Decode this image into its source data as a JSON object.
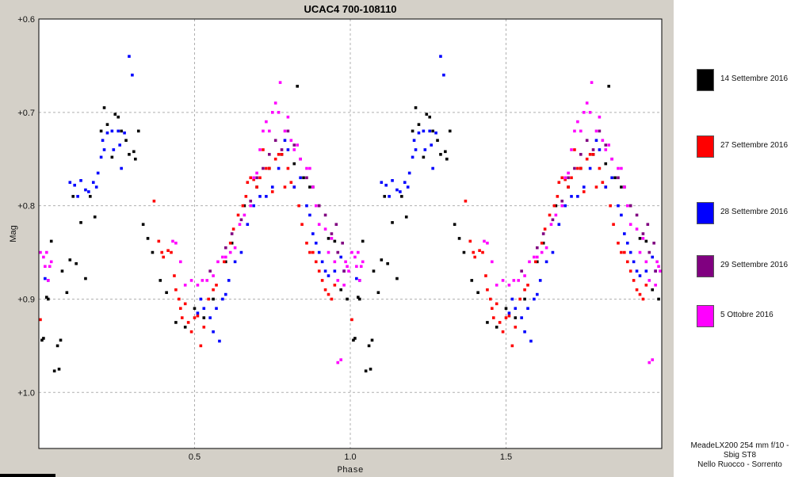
{
  "chart_data": {
    "type": "scatter",
    "title": "UCAC4 700-108110",
    "xlabel": "Phase",
    "ylabel": "Mag",
    "xlim": [
      0.0,
      2.0
    ],
    "ylim": [
      0.6,
      1.06
    ],
    "y_inverted": true,
    "x_ticks": [
      "0.5",
      "1.0",
      "1.5"
    ],
    "x_tick_values": [
      0.5,
      1.0,
      1.5
    ],
    "y_ticks": [
      "+0.6",
      "+0.7",
      "+0.8",
      "+0.9",
      "+1.0"
    ],
    "y_tick_values": [
      0.6,
      0.7,
      0.8,
      0.9,
      1.0
    ],
    "grid": true,
    "legend_position": "right",
    "phase_repeat": 1.0,
    "series": [
      {
        "name": "14 Settembre 2016",
        "color": "#000000",
        "points": [
          [
            0.01,
            0.944
          ],
          [
            0.015,
            0.942
          ],
          [
            0.025,
            0.898
          ],
          [
            0.03,
            0.9
          ],
          [
            0.04,
            0.838
          ],
          [
            0.05,
            0.977
          ],
          [
            0.06,
            0.95
          ],
          [
            0.065,
            0.975
          ],
          [
            0.07,
            0.944
          ],
          [
            0.075,
            0.87
          ],
          [
            0.09,
            0.893
          ],
          [
            0.1,
            0.858
          ],
          [
            0.11,
            0.79
          ],
          [
            0.12,
            0.862
          ],
          [
            0.135,
            0.818
          ],
          [
            0.15,
            0.878
          ],
          [
            0.165,
            0.79
          ],
          [
            0.18,
            0.812
          ],
          [
            0.2,
            0.72
          ],
          [
            0.21,
            0.695
          ],
          [
            0.22,
            0.713
          ],
          [
            0.235,
            0.748
          ],
          [
            0.245,
            0.702
          ],
          [
            0.255,
            0.705
          ],
          [
            0.265,
            0.72
          ],
          [
            0.28,
            0.73
          ],
          [
            0.29,
            0.745
          ],
          [
            0.305,
            0.742
          ],
          [
            0.31,
            0.75
          ],
          [
            0.32,
            0.72
          ],
          [
            0.335,
            0.82
          ],
          [
            0.35,
            0.835
          ],
          [
            0.365,
            0.85
          ],
          [
            0.39,
            0.88
          ],
          [
            0.41,
            0.893
          ],
          [
            0.44,
            0.925
          ],
          [
            0.47,
            0.93
          ],
          [
            0.5,
            0.91
          ],
          [
            0.53,
            0.92
          ],
          [
            0.56,
            0.9
          ],
          [
            0.6,
            0.86
          ],
          [
            0.62,
            0.84
          ],
          [
            0.66,
            0.8
          ],
          [
            0.7,
            0.78
          ],
          [
            0.74,
            0.76
          ],
          [
            0.78,
            0.745
          ],
          [
            0.82,
            0.755
          ],
          [
            0.83,
            0.672
          ],
          [
            0.85,
            0.77
          ],
          [
            0.87,
            0.78
          ],
          [
            0.88,
            0.78
          ],
          [
            0.9,
            0.8
          ],
          [
            0.93,
            0.835
          ],
          [
            0.95,
            0.838
          ],
          [
            0.97,
            0.89
          ],
          [
            0.99,
            0.9
          ]
        ]
      },
      {
        "name": "27 Settembre 2016",
        "color": "#ff0000",
        "points": [
          [
            0.005,
            0.922
          ],
          [
            0.37,
            0.795
          ],
          [
            0.385,
            0.838
          ],
          [
            0.395,
            0.85
          ],
          [
            0.4,
            0.855
          ],
          [
            0.415,
            0.848
          ],
          [
            0.425,
            0.85
          ],
          [
            0.435,
            0.875
          ],
          [
            0.44,
            0.89
          ],
          [
            0.45,
            0.9
          ],
          [
            0.455,
            0.91
          ],
          [
            0.46,
            0.92
          ],
          [
            0.47,
            0.905
          ],
          [
            0.48,
            0.925
          ],
          [
            0.49,
            0.935
          ],
          [
            0.5,
            0.92
          ],
          [
            0.51,
            0.918
          ],
          [
            0.52,
            0.95
          ],
          [
            0.53,
            0.93
          ],
          [
            0.545,
            0.9
          ],
          [
            0.56,
            0.89
          ],
          [
            0.57,
            0.885
          ],
          [
            0.595,
            0.86
          ],
          [
            0.615,
            0.84
          ],
          [
            0.625,
            0.825
          ],
          [
            0.64,
            0.81
          ],
          [
            0.655,
            0.8
          ],
          [
            0.665,
            0.79
          ],
          [
            0.67,
            0.775
          ],
          [
            0.68,
            0.77
          ],
          [
            0.69,
            0.772
          ],
          [
            0.7,
            0.78
          ],
          [
            0.71,
            0.77
          ],
          [
            0.72,
            0.74
          ],
          [
            0.73,
            0.76
          ],
          [
            0.74,
            0.76
          ],
          [
            0.75,
            0.785
          ],
          [
            0.76,
            0.75
          ],
          [
            0.77,
            0.745
          ],
          [
            0.78,
            0.745
          ],
          [
            0.79,
            0.78
          ],
          [
            0.8,
            0.76
          ],
          [
            0.81,
            0.775
          ],
          [
            0.82,
            0.78
          ],
          [
            0.835,
            0.8
          ],
          [
            0.845,
            0.82
          ],
          [
            0.86,
            0.84
          ],
          [
            0.87,
            0.85
          ],
          [
            0.88,
            0.85
          ],
          [
            0.89,
            0.86
          ],
          [
            0.9,
            0.87
          ],
          [
            0.91,
            0.88
          ],
          [
            0.92,
            0.89
          ],
          [
            0.93,
            0.895
          ],
          [
            0.94,
            0.9
          ],
          [
            0.95,
            0.885
          ]
        ]
      },
      {
        "name": "28 Settembre 2016",
        "color": "#0000ff",
        "points": [
          [
            0.02,
            0.878
          ],
          [
            0.03,
            0.88
          ],
          [
            0.1,
            0.775
          ],
          [
            0.115,
            0.778
          ],
          [
            0.125,
            0.79
          ],
          [
            0.135,
            0.773
          ],
          [
            0.15,
            0.783
          ],
          [
            0.16,
            0.785
          ],
          [
            0.175,
            0.775
          ],
          [
            0.185,
            0.78
          ],
          [
            0.19,
            0.765
          ],
          [
            0.2,
            0.748
          ],
          [
            0.205,
            0.73
          ],
          [
            0.21,
            0.74
          ],
          [
            0.22,
            0.722
          ],
          [
            0.235,
            0.72
          ],
          [
            0.24,
            0.74
          ],
          [
            0.255,
            0.72
          ],
          [
            0.26,
            0.735
          ],
          [
            0.265,
            0.76
          ],
          [
            0.275,
            0.722
          ],
          [
            0.29,
            0.64
          ],
          [
            0.3,
            0.66
          ],
          [
            0.51,
            0.915
          ],
          [
            0.52,
            0.9
          ],
          [
            0.53,
            0.91
          ],
          [
            0.55,
            0.92
          ],
          [
            0.56,
            0.935
          ],
          [
            0.57,
            0.91
          ],
          [
            0.58,
            0.945
          ],
          [
            0.59,
            0.9
          ],
          [
            0.6,
            0.895
          ],
          [
            0.61,
            0.88
          ],
          [
            0.63,
            0.86
          ],
          [
            0.65,
            0.85
          ],
          [
            0.67,
            0.82
          ],
          [
            0.69,
            0.8
          ],
          [
            0.71,
            0.79
          ],
          [
            0.73,
            0.79
          ],
          [
            0.75,
            0.78
          ],
          [
            0.77,
            0.76
          ],
          [
            0.79,
            0.73
          ],
          [
            0.8,
            0.74
          ],
          [
            0.82,
            0.78
          ],
          [
            0.84,
            0.77
          ],
          [
            0.86,
            0.8
          ],
          [
            0.87,
            0.81
          ],
          [
            0.88,
            0.83
          ],
          [
            0.89,
            0.84
          ],
          [
            0.9,
            0.85
          ],
          [
            0.91,
            0.86
          ],
          [
            0.92,
            0.87
          ],
          [
            0.93,
            0.875
          ],
          [
            0.95,
            0.87
          ],
          [
            0.97,
            0.855
          ],
          [
            0.98,
            0.87
          ]
        ]
      },
      {
        "name": "29 Settembre 2016",
        "color": "#800080",
        "points": [
          [
            0.55,
            0.87
          ],
          [
            0.6,
            0.845
          ],
          [
            0.62,
            0.83
          ],
          [
            0.65,
            0.815
          ],
          [
            0.68,
            0.795
          ],
          [
            0.7,
            0.77
          ],
          [
            0.72,
            0.76
          ],
          [
            0.74,
            0.745
          ],
          [
            0.76,
            0.73
          ],
          [
            0.78,
            0.74
          ],
          [
            0.8,
            0.72
          ],
          [
            0.82,
            0.735
          ],
          [
            0.84,
            0.75
          ],
          [
            0.86,
            0.77
          ],
          [
            0.88,
            0.78
          ],
          [
            0.9,
            0.8
          ],
          [
            0.92,
            0.81
          ],
          [
            0.94,
            0.83
          ],
          [
            0.96,
            0.85
          ],
          [
            0.98,
            0.87
          ],
          [
            0.975,
            0.84
          ],
          [
            0.955,
            0.82
          ]
        ]
      },
      {
        "name": "5 Ottobre 2016",
        "color": "#ff00ff",
        "points": [
          [
            0.005,
            0.85
          ],
          [
            0.015,
            0.855
          ],
          [
            0.02,
            0.865
          ],
          [
            0.025,
            0.85
          ],
          [
            0.03,
            0.88
          ],
          [
            0.035,
            0.865
          ],
          [
            0.04,
            0.86
          ],
          [
            0.43,
            0.838
          ],
          [
            0.44,
            0.84
          ],
          [
            0.455,
            0.86
          ],
          [
            0.47,
            0.885
          ],
          [
            0.49,
            0.88
          ],
          [
            0.51,
            0.885
          ],
          [
            0.525,
            0.88
          ],
          [
            0.54,
            0.88
          ],
          [
            0.56,
            0.875
          ],
          [
            0.575,
            0.86
          ],
          [
            0.59,
            0.855
          ],
          [
            0.6,
            0.855
          ],
          [
            0.615,
            0.85
          ],
          [
            0.63,
            0.845
          ],
          [
            0.645,
            0.82
          ],
          [
            0.66,
            0.81
          ],
          [
            0.68,
            0.8
          ],
          [
            0.69,
            0.77
          ],
          [
            0.7,
            0.765
          ],
          [
            0.71,
            0.74
          ],
          [
            0.72,
            0.72
          ],
          [
            0.73,
            0.71
          ],
          [
            0.74,
            0.72
          ],
          [
            0.75,
            0.7
          ],
          [
            0.76,
            0.69
          ],
          [
            0.77,
            0.7
          ],
          [
            0.775,
            0.668
          ],
          [
            0.79,
            0.72
          ],
          [
            0.8,
            0.705
          ],
          [
            0.81,
            0.73
          ],
          [
            0.82,
            0.74
          ],
          [
            0.83,
            0.735
          ],
          [
            0.84,
            0.75
          ],
          [
            0.86,
            0.76
          ],
          [
            0.87,
            0.76
          ],
          [
            0.88,
            0.78
          ],
          [
            0.89,
            0.8
          ],
          [
            0.9,
            0.82
          ],
          [
            0.92,
            0.825
          ],
          [
            0.94,
            0.835
          ],
          [
            0.95,
            0.86
          ],
          [
            0.96,
            0.88
          ],
          [
            0.98,
            0.885
          ],
          [
            0.985,
            0.86
          ],
          [
            0.99,
            0.865
          ],
          [
            0.995,
            0.87
          ],
          [
            0.97,
            0.965
          ],
          [
            0.96,
            0.968
          ],
          [
            0.93,
            0.85
          ]
        ]
      }
    ]
  },
  "legend": {
    "items": [
      {
        "label": "14 Settembre 2016",
        "color": "#000000"
      },
      {
        "label": "27 Settembre 2016",
        "color": "#ff0000"
      },
      {
        "label": "28 Settembre 2016",
        "color": "#0000ff"
      },
      {
        "label": "29 Settembre 2016",
        "color": "#800080"
      },
      {
        "label": "5 Ottobre 2016",
        "color": "#ff00ff"
      }
    ]
  },
  "credits": {
    "line1": "MeadeLX200 254 mm f/10 -",
    "line2": "Sbig ST8",
    "line3": "Nello Ruocco - Sorrento"
  }
}
